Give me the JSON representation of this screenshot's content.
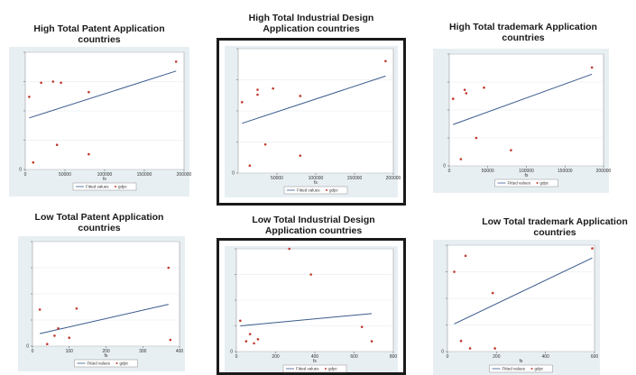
{
  "chart_data": [
    {
      "type": "scatter",
      "title": "High Total Patent Application countries",
      "xlabel": "fs",
      "ylabel": "",
      "xlim": [
        0,
        200000
      ],
      "ylim": [
        0,
        1
      ],
      "xticks": [
        "0",
        "50000",
        "100000",
        "150000",
        "200000"
      ],
      "yticks": [
        "0"
      ],
      "grid": true,
      "legend": [
        "Fitted values",
        "gdpc"
      ],
      "legend_position": "bottom",
      "points": [
        [
          5000,
          0.62
        ],
        [
          10000,
          0.06
        ],
        [
          20000,
          0.74
        ],
        [
          35000,
          0.75
        ],
        [
          45000,
          0.74
        ],
        [
          40000,
          0.21
        ],
        [
          80000,
          0.13
        ],
        [
          80000,
          0.66
        ],
        [
          190000,
          0.92
        ]
      ],
      "fit": [
        [
          5000,
          0.44
        ],
        [
          190000,
          0.84
        ]
      ]
    },
    {
      "type": "scatter",
      "title": "High Total Industrial Design Application countries",
      "xlabel": "fs",
      "ylabel": "",
      "xlim": [
        0,
        200000
      ],
      "ylim": [
        0,
        1
      ],
      "xticks": [
        "50000",
        "100000",
        "150000",
        "200000"
      ],
      "yticks": [
        "0"
      ],
      "grid": true,
      "legend": [
        "Fitted values",
        "gdpc"
      ],
      "legend_position": "bottom",
      "points": [
        [
          5000,
          0.57
        ],
        [
          15000,
          0.06
        ],
        [
          25000,
          0.67
        ],
        [
          25000,
          0.63
        ],
        [
          35000,
          0.23
        ],
        [
          45000,
          0.68
        ],
        [
          80000,
          0.14
        ],
        [
          80000,
          0.62
        ],
        [
          190000,
          0.9
        ]
      ],
      "fit": [
        [
          5000,
          0.4
        ],
        [
          190000,
          0.78
        ]
      ]
    },
    {
      "type": "scatter",
      "title": "High Total trademark Application countries",
      "xlabel": "fs",
      "ylabel": "",
      "xlim": [
        0,
        200000
      ],
      "ylim": [
        0,
        1
      ],
      "xticks": [
        "0",
        "50000",
        "100000",
        "150000",
        "200000"
      ],
      "yticks": [
        "0"
      ],
      "grid": true,
      "legend": [
        "Fitted values",
        "gdpc"
      ],
      "legend_position": "bottom",
      "points": [
        [
          5000,
          0.6
        ],
        [
          15000,
          0.06
        ],
        [
          20000,
          0.68
        ],
        [
          22000,
          0.65
        ],
        [
          35000,
          0.25
        ],
        [
          45000,
          0.7
        ],
        [
          80000,
          0.14
        ],
        [
          185000,
          0.88
        ]
      ],
      "fit": [
        [
          5000,
          0.37
        ],
        [
          185000,
          0.82
        ]
      ]
    },
    {
      "type": "scatter",
      "title": "Low Total Patent Application countries",
      "xlabel": "fs",
      "ylabel": "",
      "xlim": [
        0,
        400
      ],
      "ylim": [
        0,
        1
      ],
      "xticks": [
        "0",
        "100",
        "200",
        "300",
        "400"
      ],
      "yticks": [
        "0"
      ],
      "grid": true,
      "legend": [
        "Fitted values",
        "gdpc"
      ],
      "legend_position": "bottom",
      "points": [
        [
          20,
          0.35
        ],
        [
          40,
          0.02
        ],
        [
          60,
          0.1
        ],
        [
          70,
          0.17
        ],
        [
          100,
          0.08
        ],
        [
          120,
          0.36
        ],
        [
          370,
          0.75
        ],
        [
          375,
          0.06
        ]
      ],
      "fit": [
        [
          20,
          0.12
        ],
        [
          370,
          0.4
        ]
      ]
    },
    {
      "type": "scatter",
      "title": "Low Total Industrial Design Application countries",
      "xlabel": "fs",
      "ylabel": "",
      "xlim": [
        0,
        800
      ],
      "ylim": [
        0,
        1
      ],
      "xticks": [
        "0",
        "200",
        "400",
        "600",
        "800"
      ],
      "yticks": [
        "0"
      ],
      "grid": true,
      "legend": [
        "Fitted values",
        "gdpc"
      ],
      "legend_position": "bottom",
      "points": [
        [
          20,
          0.3
        ],
        [
          50,
          0.1
        ],
        [
          70,
          0.17
        ],
        [
          90,
          0.08
        ],
        [
          110,
          0.12
        ],
        [
          270,
          1.0
        ],
        [
          380,
          0.75
        ],
        [
          640,
          0.24
        ],
        [
          690,
          0.1
        ]
      ],
      "fit": [
        [
          20,
          0.25
        ],
        [
          690,
          0.37
        ]
      ]
    },
    {
      "type": "scatter",
      "title": "Low Total trademark Application countries",
      "xlabel": "fs",
      "ylabel": "",
      "xlim": [
        0,
        650
      ],
      "ylim": [
        0,
        1
      ],
      "xticks": [
        "0",
        "200",
        "400",
        "600"
      ],
      "yticks": [
        "0"
      ],
      "grid": true,
      "legend": [
        "Fitted values",
        "gdpc"
      ],
      "legend_position": "bottom",
      "points": [
        [
          30,
          0.75
        ],
        [
          60,
          0.1
        ],
        [
          80,
          0.9
        ],
        [
          100,
          0.03
        ],
        [
          200,
          0.55
        ],
        [
          210,
          0.03
        ],
        [
          640,
          0.97
        ]
      ],
      "fit": [
        [
          30,
          0.26
        ],
        [
          640,
          0.88
        ]
      ]
    }
  ],
  "colors": {
    "line": "#3a5a8c",
    "dot": "#c0392b",
    "plot_bg": "#e8eff3",
    "frame": "#1a1a1a"
  }
}
